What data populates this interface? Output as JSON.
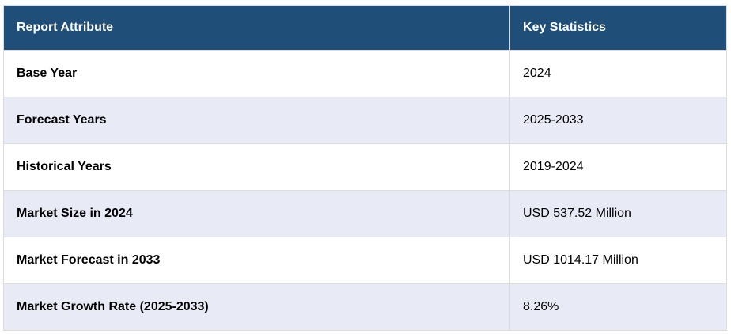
{
  "table": {
    "headers": [
      "Report Attribute",
      "Key Statistics"
    ],
    "rows": [
      [
        "Base Year",
        "2024"
      ],
      [
        "Forecast Years",
        "2025-2033"
      ],
      [
        "Historical Years",
        "2019-2024"
      ],
      [
        "Market Size in 2024",
        "USD 537.52 Million"
      ],
      [
        "Market Forecast in 2033",
        "USD 1014.17 Million"
      ],
      [
        "Market Growth Rate (2025-2033)",
        "8.26%"
      ]
    ]
  },
  "colors": {
    "header_bg": "#1f4e79",
    "header_text": "#ffffff",
    "row_alt_bg": "#e8eaf6",
    "row_bg": "#ffffff",
    "border": "#dcdcdc"
  }
}
